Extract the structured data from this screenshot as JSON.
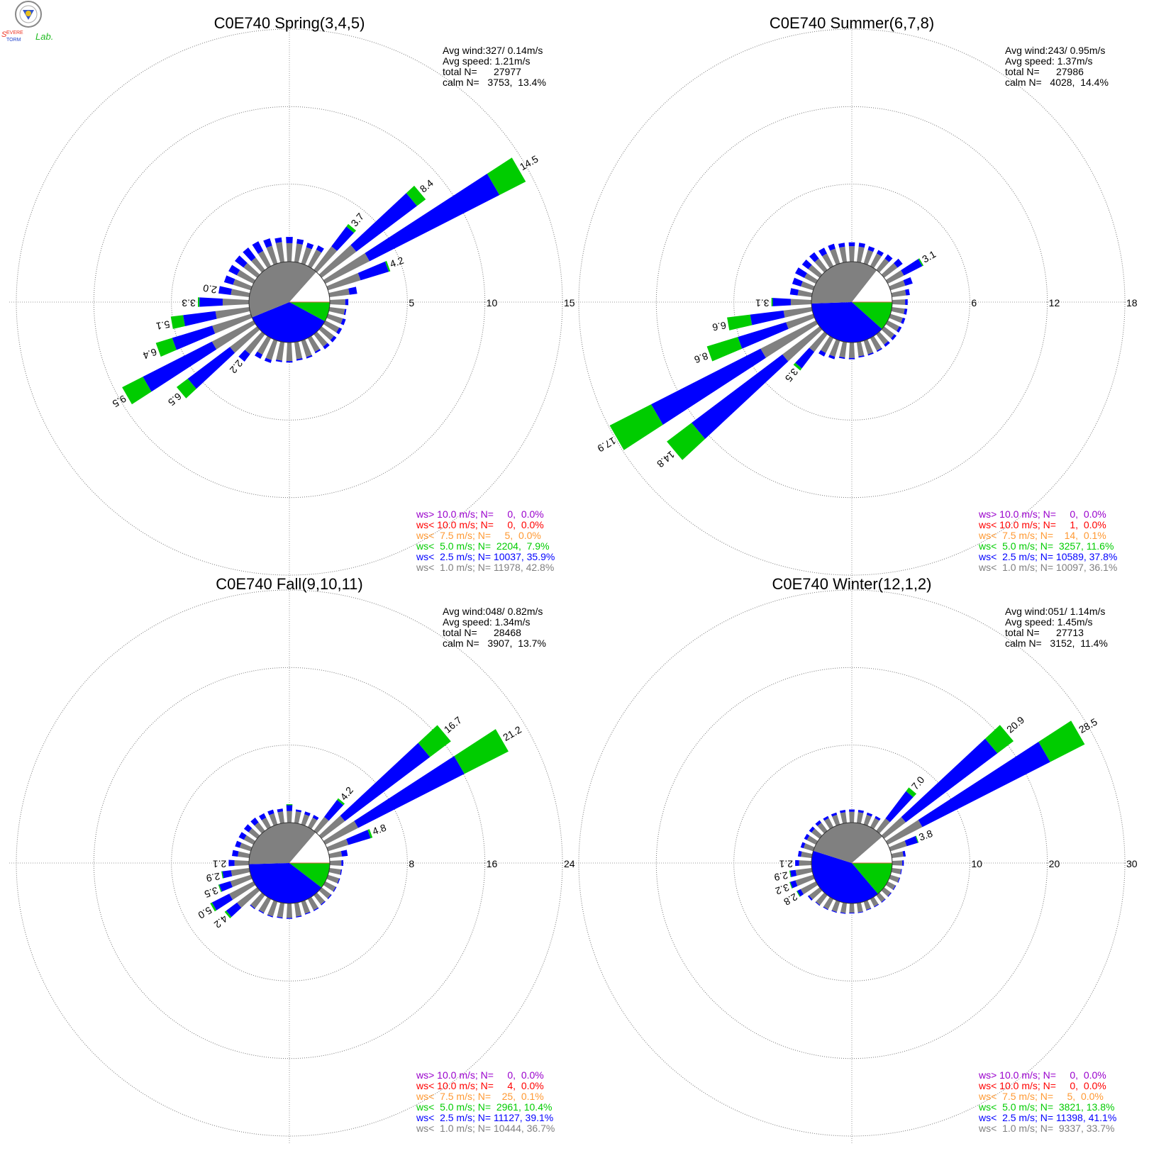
{
  "logo_text": "Severe Storm Lab.",
  "colors": {
    "gray": "#808080",
    "blue": "#0000ff",
    "green": "#00cc00",
    "orange": "#ff9933",
    "red": "#ff0000",
    "purple": "#9900cc"
  },
  "chart_data": [
    {
      "type": "windrose",
      "title": "C0E740 Spring(3,4,5)",
      "stats": [
        "Avg wind:327/ 0.14m/s",
        "Avg speed: 1.21m/s",
        "total N=      27977",
        "calm N=   3753,  13.4%"
      ],
      "legend": [
        {
          "text": "ws> 10.0 m/s; N=     0,  0.0%",
          "color": "#9900cc"
        },
        {
          "text": "ws< 10.0 m/s; N=     0,  0.0%",
          "color": "#ff0000"
        },
        {
          "text": "ws<  7.5 m/s; N=     5,  0.0%",
          "color": "#ff9933"
        },
        {
          "text": "ws<  5.0 m/s; N=  2204,  7.9%",
          "color": "#00cc00"
        },
        {
          "text": "ws<  2.5 m/s; N= 10037, 35.9%",
          "color": "#0000ff"
        },
        {
          "text": "ws<  1.0 m/s; N= 11978, 42.8%",
          "color": "#808080"
        }
      ],
      "rmax": 15,
      "ticks": [
        5,
        10,
        15
      ],
      "pie_percent": {
        "green": 7.9,
        "blue": 35.9,
        "gray": 42.8,
        "calm": 13.4
      },
      "direction_step_deg": 10,
      "bars_percent_gray_blue_green": [
        [
          1.2,
          0.4,
          0
        ],
        [
          1.2,
          0.3,
          0
        ],
        [
          1.1,
          0.3,
          0
        ],
        [
          1.2,
          0.3,
          0
        ],
        [
          1.9,
          1.6,
          0.2
        ],
        [
          2.8,
          4.9,
          0.7
        ],
        [
          3.2,
          9.4,
          1.9
        ],
        [
          2.2,
          1.9,
          0.1
        ],
        [
          1.3,
          0.5,
          0
        ],
        [
          1.0,
          0.2,
          0
        ],
        [
          1.0,
          0.1,
          0
        ],
        [
          1.0,
          0.2,
          0
        ],
        [
          1.0,
          0.2,
          0
        ],
        [
          1.0,
          0.2,
          0
        ],
        [
          1.0,
          0.2,
          0
        ],
        [
          1.0,
          0.1,
          0
        ],
        [
          1.1,
          0.1,
          0
        ],
        [
          1.1,
          0.1,
          0
        ],
        [
          1.2,
          0.1,
          0
        ],
        [
          1.2,
          0.1,
          0
        ],
        [
          1.3,
          0.2,
          0
        ],
        [
          1.2,
          0.3,
          0
        ],
        [
          1.6,
          0.6,
          0
        ],
        [
          2.2,
          3.4,
          0.9
        ],
        [
          3.0,
          5.0,
          1.5
        ],
        [
          2.6,
          2.7,
          1.1
        ],
        [
          2.2,
          2.1,
          0.8
        ],
        [
          1.7,
          1.5,
          0.1
        ],
        [
          1.2,
          0.8,
          0
        ],
        [
          1.2,
          0.6,
          0
        ],
        [
          1.2,
          0.6,
          0
        ],
        [
          1.1,
          0.7,
          0
        ],
        [
          1.0,
          0.8,
          0
        ],
        [
          1.1,
          0.7,
          0
        ],
        [
          1.2,
          0.5,
          0
        ],
        [
          1.3,
          0.3,
          0
        ]
      ]
    },
    {
      "type": "windrose",
      "title": "C0E740 Summer(6,7,8)",
      "stats": [
        "Avg wind:243/ 0.95m/s",
        "Avg speed: 1.37m/s",
        "total N=      27986",
        "calm N=   4028,  14.4%"
      ],
      "legend": [
        {
          "text": "ws> 10.0 m/s; N=     0,  0.0%",
          "color": "#9900cc"
        },
        {
          "text": "ws< 10.0 m/s; N=     1,  0.0%",
          "color": "#ff0000"
        },
        {
          "text": "ws<  7.5 m/s; N=    14,  0.1%",
          "color": "#ff9933"
        },
        {
          "text": "ws<  5.0 m/s; N=  3257, 11.6%",
          "color": "#00cc00"
        },
        {
          "text": "ws<  2.5 m/s; N= 10589, 37.8%",
          "color": "#0000ff"
        },
        {
          "text": "ws<  1.0 m/s; N= 10097, 36.1%",
          "color": "#808080"
        }
      ],
      "rmax": 18,
      "ticks": [
        6,
        12,
        18
      ],
      "pie_percent": {
        "green": 11.6,
        "blue": 37.8,
        "gray": 36.1,
        "calm": 14.4
      },
      "direction_step_deg": 10,
      "bars_percent_gray_blue_green": [
        [
          1.2,
          0.3,
          0
        ],
        [
          1.2,
          0.3,
          0
        ],
        [
          1.1,
          0.3,
          0
        ],
        [
          1.1,
          0.3,
          0
        ],
        [
          1.1,
          0.4,
          0
        ],
        [
          1.3,
          0.5,
          0
        ],
        [
          1.4,
          1.6,
          0.1
        ],
        [
          1.2,
          0.6,
          0
        ],
        [
          1.1,
          0.3,
          0
        ],
        [
          1.0,
          0.2,
          0
        ],
        [
          1.0,
          0.2,
          0
        ],
        [
          1.0,
          0.2,
          0
        ],
        [
          1.0,
          0.2,
          0
        ],
        [
          1.0,
          0.2,
          0
        ],
        [
          1.0,
          0.2,
          0
        ],
        [
          1.1,
          0.1,
          0
        ],
        [
          1.1,
          0.1,
          0
        ],
        [
          1.1,
          0.1,
          0
        ],
        [
          1.2,
          0.1,
          0
        ],
        [
          1.2,
          0.1,
          0
        ],
        [
          1.3,
          0.2,
          0
        ],
        [
          1.3,
          0.3,
          0
        ],
        [
          1.7,
          1.6,
          0.2
        ],
        [
          3.6,
          8.8,
          2.4
        ],
        [
          4.8,
          9.5,
          3.6
        ],
        [
          2.2,
          3.9,
          2.5
        ],
        [
          2.2,
          2.6,
          1.8
        ],
        [
          1.6,
          1.4,
          0.1
        ],
        [
          1.1,
          0.6,
          0
        ],
        [
          1.0,
          0.7,
          0
        ],
        [
          1.0,
          0.8,
          0
        ],
        [
          1.1,
          0.6,
          0
        ],
        [
          1.1,
          0.6,
          0
        ],
        [
          1.1,
          0.5,
          0
        ],
        [
          1.2,
          0.4,
          0
        ],
        [
          1.2,
          0.3,
          0
        ]
      ]
    },
    {
      "type": "windrose",
      "title": "C0E740 Fall(9,10,11)",
      "stats": [
        "Avg wind:048/ 0.82m/s",
        "Avg speed: 1.34m/s",
        "total N=      28468",
        "calm N=   3907,  13.7%"
      ],
      "legend": [
        {
          "text": "ws> 10.0 m/s; N=     0,  0.0%",
          "color": "#9900cc"
        },
        {
          "text": "ws< 10.0 m/s; N=     4,  0.0%",
          "color": "#ff0000"
        },
        {
          "text": "ws<  7.5 m/s; N=    25,  0.1%",
          "color": "#ff9933"
        },
        {
          "text": "ws<  5.0 m/s; N=  2961, 10.4%",
          "color": "#00cc00"
        },
        {
          "text": "ws<  2.5 m/s; N= 11127, 39.1%",
          "color": "#0000ff"
        },
        {
          "text": "ws<  1.0 m/s; N= 10444, 36.7%",
          "color": "#808080"
        }
      ],
      "rmax": 24,
      "ticks": [
        8,
        16,
        24
      ],
      "pie_percent": {
        "green": 10.4,
        "blue": 39.1,
        "gray": 36.7,
        "calm": 13.7
      },
      "direction_step_deg": 10,
      "bars_percent_gray_blue_green": [
        [
          1.2,
          0.6,
          0.1
        ],
        [
          1.2,
          0.2,
          0
        ],
        [
          1.1,
          0.3,
          0
        ],
        [
          1.1,
          0.3,
          0
        ],
        [
          1.8,
          2.2,
          0.2
        ],
        [
          3.0,
          11.0,
          2.7
        ],
        [
          3.8,
          12.3,
          5.1
        ],
        [
          2.2,
          2.4,
          0.2
        ],
        [
          1.3,
          0.6,
          0
        ],
        [
          1.2,
          0.2,
          0
        ],
        [
          1.2,
          0.1,
          0
        ],
        [
          1.2,
          0.1,
          0
        ],
        [
          1.2,
          0.1,
          0
        ],
        [
          1.2,
          0.1,
          0
        ],
        [
          1.2,
          0.1,
          0
        ],
        [
          1.3,
          0.1,
          0
        ],
        [
          1.3,
          0.1,
          0
        ],
        [
          1.4,
          0.1,
          0
        ],
        [
          1.5,
          0.1,
          0
        ],
        [
          1.5,
          0.1,
          0
        ],
        [
          1.6,
          0.1,
          0
        ],
        [
          1.6,
          0.1,
          0
        ],
        [
          1.7,
          0.1,
          0
        ],
        [
          2.6,
          1.4,
          0.2
        ],
        [
          2.8,
          2.0,
          0.2
        ],
        [
          2.2,
          1.2,
          0.1
        ],
        [
          1.9,
          0.9,
          0.1
        ],
        [
          1.5,
          0.6,
          0
        ],
        [
          1.2,
          0.6,
          0
        ],
        [
          1.2,
          0.5,
          0
        ],
        [
          1.1,
          0.6,
          0
        ],
        [
          1.1,
          0.6,
          0
        ],
        [
          1.1,
          0.6,
          0
        ],
        [
          1.1,
          0.5,
          0
        ],
        [
          1.2,
          0.4,
          0
        ],
        [
          1.2,
          0.3,
          0
        ]
      ]
    },
    {
      "type": "windrose",
      "title": "C0E740 Winter(12,1,2)",
      "stats": [
        "Avg wind:051/ 1.14m/s",
        "Avg speed: 1.45m/s",
        "total N=      27713",
        "calm N=   3152,  11.4%"
      ],
      "legend": [
        {
          "text": "ws> 10.0 m/s; N=     0,  0.0%",
          "color": "#9900cc"
        },
        {
          "text": "ws< 10.0 m/s; N=     0,  0.0%",
          "color": "#ff0000"
        },
        {
          "text": "ws<  7.5 m/s; N=     5,  0.0%",
          "color": "#ff9933"
        },
        {
          "text": "ws<  5.0 m/s; N=  3821, 13.8%",
          "color": "#00cc00"
        },
        {
          "text": "ws<  2.5 m/s; N= 11398, 41.1%",
          "color": "#0000ff"
        },
        {
          "text": "ws<  1.0 m/s; N=  9337, 33.7%",
          "color": "#808080"
        }
      ],
      "rmax": 30,
      "ticks": [
        10,
        20,
        30
      ],
      "pie_percent": {
        "green": 13.8,
        "blue": 41.1,
        "gray": 33.7,
        "calm": 11.4
      },
      "direction_step_deg": 10,
      "bars_percent_gray_blue_green": [
        [
          1.4,
          0.3,
          0
        ],
        [
          1.4,
          0.3,
          0
        ],
        [
          1.3,
          0.3,
          0
        ],
        [
          1.3,
          0.3,
          0
        ],
        [
          2.0,
          4.4,
          0.6
        ],
        [
          3.5,
          14.8,
          2.6
        ],
        [
          5.0,
          18.5,
          5.0
        ],
        [
          2.2,
          1.5,
          0.1
        ],
        [
          1.5,
          0.3,
          0
        ],
        [
          1.3,
          0.2,
          0
        ],
        [
          1.2,
          0.1,
          0
        ],
        [
          1.2,
          0.1,
          0
        ],
        [
          1.1,
          0.1,
          0
        ],
        [
          1.1,
          0.1,
          0
        ],
        [
          1.1,
          0.1,
          0
        ],
        [
          1.1,
          0.1,
          0
        ],
        [
          1.1,
          0.1,
          0
        ],
        [
          1.2,
          0.1,
          0
        ],
        [
          1.2,
          0.1,
          0
        ],
        [
          1.3,
          0.1,
          0
        ],
        [
          1.4,
          0.1,
          0
        ],
        [
          1.5,
          0.1,
          0
        ],
        [
          1.6,
          0.1,
          0
        ],
        [
          1.7,
          0.2,
          0
        ],
        [
          2.2,
          0.5,
          0.1
        ],
        [
          2.4,
          0.7,
          0.1
        ],
        [
          2.1,
          0.7,
          0.1
        ],
        [
          1.6,
          0.5,
          0
        ],
        [
          1.4,
          0.4,
          0
        ],
        [
          1.3,
          0.4,
          0
        ],
        [
          1.3,
          0.4,
          0
        ],
        [
          1.3,
          0.4,
          0
        ],
        [
          1.3,
          0.4,
          0
        ],
        [
          1.3,
          0.3,
          0
        ],
        [
          1.3,
          0.3,
          0
        ],
        [
          1.4,
          0.3,
          0
        ]
      ]
    }
  ]
}
